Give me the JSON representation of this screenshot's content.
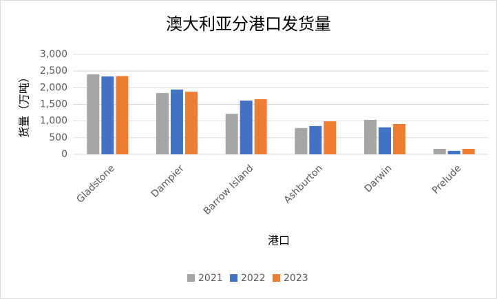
{
  "chart_data": {
    "type": "bar",
    "title": "澳大利亚分港口发货量",
    "x_label": "港口",
    "y_label": "货量（万吨）",
    "categories": [
      "Gladstone",
      "Dampier",
      "Barrow Island",
      "Ashburton",
      "Darwin",
      "Prelude"
    ],
    "series": [
      {
        "name": "2021",
        "color": "#a5a5a5",
        "values": [
          2400,
          1840,
          1220,
          790,
          1035,
          165
        ]
      },
      {
        "name": "2022",
        "color": "#4472c4",
        "values": [
          2340,
          1945,
          1615,
          850,
          810,
          105
        ]
      },
      {
        "name": "2023",
        "color": "#ed7d31",
        "values": [
          2350,
          1880,
          1655,
          990,
          910,
          165
        ]
      }
    ],
    "ylim": [
      0,
      3000
    ],
    "yticks": [
      0,
      500,
      {
        "value": 1000,
        "label": "1,000"
      },
      {
        "value": 1500,
        "label": "1,500"
      },
      {
        "value": 2000,
        "label": "2,000"
      },
      {
        "value": 2500,
        "label": "2,500"
      },
      {
        "value": 3000,
        "label": "3,000"
      }
    ],
    "grid": true,
    "legend": "bottom"
  }
}
